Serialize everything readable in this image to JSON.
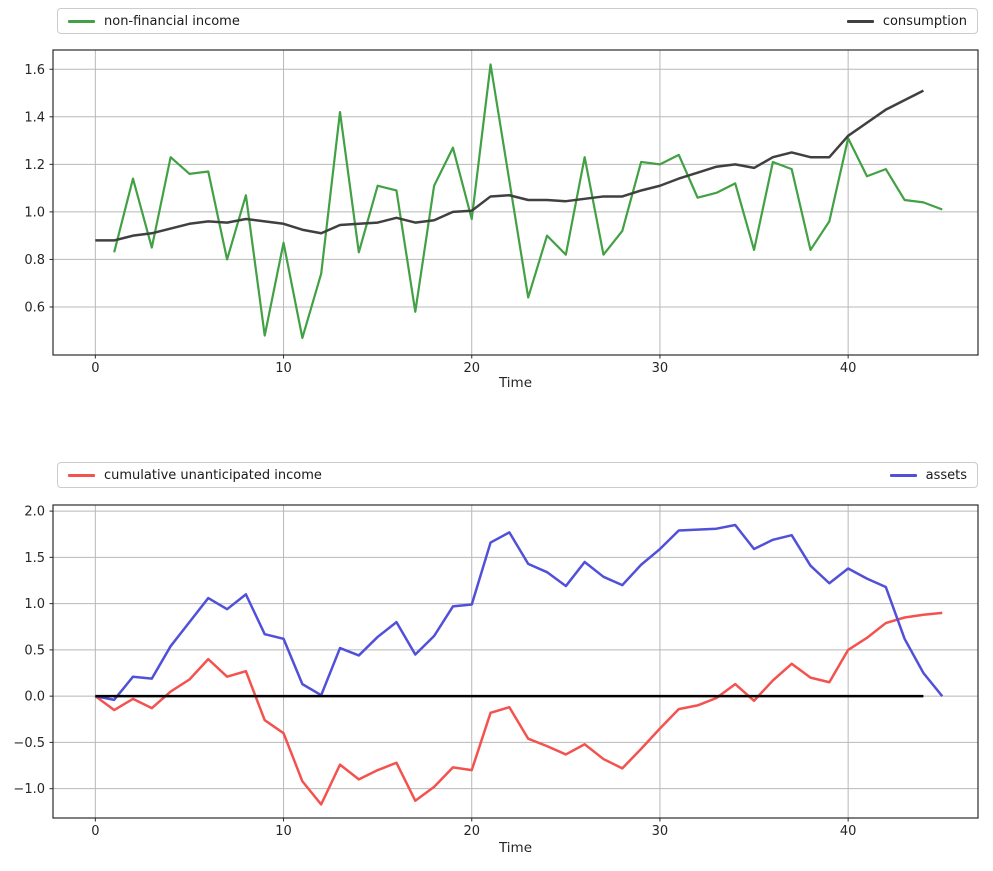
{
  "figure": {
    "background": "#ffffff"
  },
  "chart_data": [
    {
      "type": "line",
      "xlabel": "Time",
      "grid": true,
      "legend_position": "above, spanning plot width; first item left, second item right",
      "x_ticks": [
        0,
        10,
        20,
        30,
        40
      ],
      "x_tick_labels": [
        "0",
        "10",
        "20",
        "30",
        "40"
      ],
      "y_ticks": [
        0.6,
        0.8,
        1.0,
        1.2,
        1.4,
        1.6
      ],
      "y_tick_labels": [
        "0.6",
        "0.8",
        "1.0",
        "1.2",
        "1.4",
        "1.6"
      ],
      "xlim": [
        -2.25,
        46.9
      ],
      "ylim": [
        0.398,
        1.681
      ],
      "legend": [
        {
          "label": "non-financial income",
          "color": "#42a045"
        },
        {
          "label": "consumption",
          "color": "#404040"
        }
      ],
      "series": [
        {
          "name": "non-financial income",
          "color": "#42a045",
          "line_width": 2.2,
          "x_start": 1,
          "values": [
            0.83,
            1.14,
            0.85,
            1.23,
            1.16,
            1.17,
            0.8,
            1.07,
            0.48,
            0.87,
            0.47,
            0.74,
            1.42,
            0.83,
            1.11,
            1.09,
            0.58,
            1.11,
            1.27,
            0.97,
            1.62,
            1.13,
            0.64,
            0.9,
            0.82,
            1.23,
            0.82,
            0.92,
            1.21,
            1.2,
            1.24,
            1.06,
            1.08,
            1.12,
            0.84,
            1.21,
            1.18,
            0.84,
            0.96,
            1.31,
            1.15,
            1.18,
            1.05,
            1.04,
            1.01
          ]
        },
        {
          "name": "consumption",
          "color": "#404040",
          "line_width": 2.5,
          "x_start": 0,
          "values": [
            0.88,
            0.88,
            0.9,
            0.91,
            0.93,
            0.95,
            0.96,
            0.955,
            0.97,
            0.96,
            0.95,
            0.925,
            0.91,
            0.945,
            0.95,
            0.955,
            0.975,
            0.955,
            0.965,
            1.0,
            1.005,
            1.065,
            1.07,
            1.05,
            1.05,
            1.045,
            1.055,
            1.065,
            1.065,
            1.09,
            1.11,
            1.14,
            1.165,
            1.19,
            1.2,
            1.185,
            1.23,
            1.25,
            1.23,
            1.23,
            1.32,
            1.375,
            1.43,
            1.47,
            1.51
          ]
        }
      ],
      "hlines": []
    },
    {
      "type": "line",
      "xlabel": "Time",
      "grid": true,
      "legend_position": "above, spanning plot width; first item left, second item right",
      "x_ticks": [
        0,
        10,
        20,
        30,
        40
      ],
      "x_tick_labels": [
        "0",
        "10",
        "20",
        "30",
        "40"
      ],
      "y_ticks": [
        -1.0,
        -0.5,
        0.0,
        0.5,
        1.0,
        1.5,
        2.0
      ],
      "y_tick_labels": [
        "−1.0",
        "−0.5",
        "0.0",
        "0.5",
        "1.0",
        "1.5",
        "2.0"
      ],
      "xlim": [
        -2.25,
        46.9
      ],
      "ylim": [
        -1.317,
        2.066
      ],
      "legend": [
        {
          "label": "cumulative unanticipated income",
          "color": "#f4524f"
        },
        {
          "label": "assets",
          "color": "#5150d9"
        }
      ],
      "series": [
        {
          "name": "cumulative unanticipated income",
          "color": "#f4524f",
          "line_width": 2.5,
          "x_start": 0,
          "values": [
            0.0,
            -0.15,
            -0.03,
            -0.13,
            0.05,
            0.18,
            0.4,
            0.21,
            0.27,
            -0.26,
            -0.4,
            -0.92,
            -1.17,
            -0.74,
            -0.9,
            -0.8,
            -0.72,
            -1.13,
            -0.98,
            -0.77,
            -0.8,
            -0.18,
            -0.12,
            -0.46,
            -0.54,
            -0.63,
            -0.52,
            -0.68,
            -0.78,
            -0.57,
            -0.35,
            -0.14,
            -0.1,
            -0.02,
            0.13,
            -0.05,
            0.17,
            0.35,
            0.2,
            0.15,
            0.5,
            0.63,
            0.79,
            0.85,
            0.88,
            0.9
          ]
        },
        {
          "name": "assets",
          "color": "#5150d9",
          "line_width": 2.5,
          "x_start": 0,
          "values": [
            0.0,
            -0.04,
            0.21,
            0.19,
            0.54,
            0.8,
            1.06,
            0.94,
            1.1,
            0.67,
            0.62,
            0.13,
            0.01,
            0.52,
            0.44,
            0.64,
            0.8,
            0.45,
            0.65,
            0.97,
            0.99,
            1.66,
            1.77,
            1.43,
            1.34,
            1.19,
            1.45,
            1.29,
            1.2,
            1.42,
            1.59,
            1.79,
            1.8,
            1.81,
            1.85,
            1.59,
            1.69,
            1.74,
            1.41,
            1.22,
            1.38,
            1.27,
            1.18,
            0.62,
            0.25,
            0.0
          ]
        }
      ],
      "hlines": [
        {
          "y": 0.0,
          "x0": 0,
          "x1": 44,
          "color": "#000000",
          "width": 2.5
        }
      ]
    }
  ]
}
